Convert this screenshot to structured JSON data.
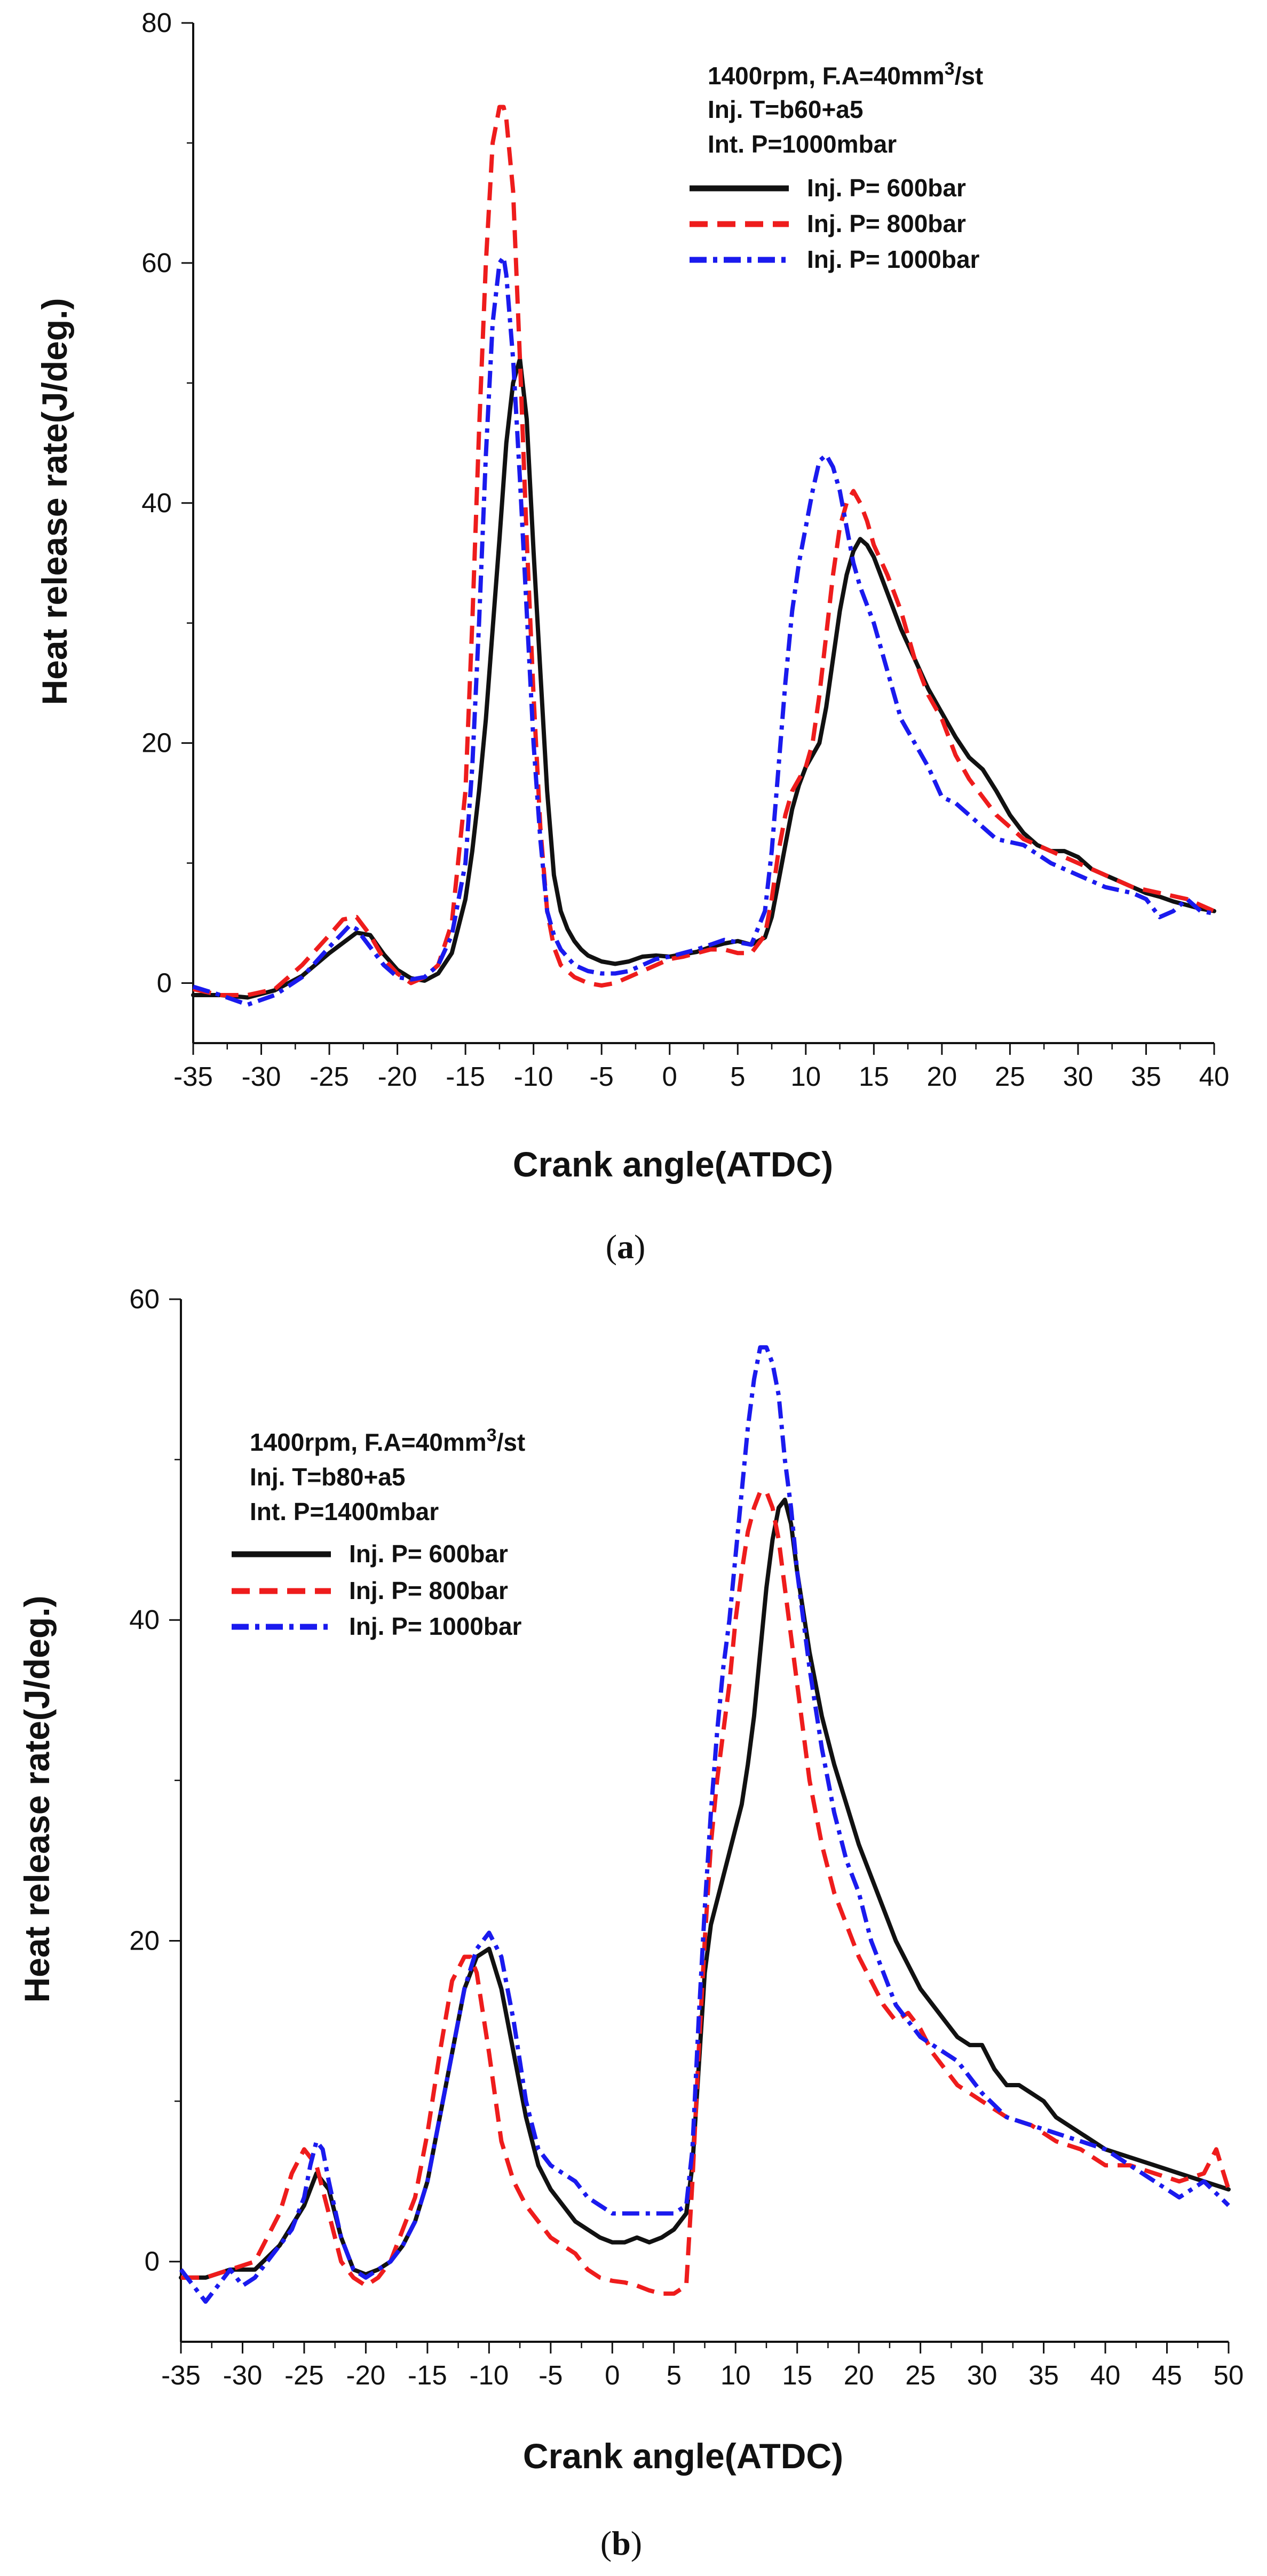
{
  "chart_data": [
    {
      "type": "line",
      "panel_label": "a",
      "xlabel": "Crank angle(ATDC)",
      "ylabel": "Heat release rate(J/deg.)",
      "xlim": [
        -35,
        40
      ],
      "ylim": [
        -5,
        80
      ],
      "xticks": [
        -35,
        -30,
        -25,
        -20,
        -15,
        -10,
        -5,
        0,
        5,
        10,
        15,
        20,
        25,
        30,
        35,
        40
      ],
      "yticks": [
        0,
        20,
        40,
        60,
        80
      ],
      "annotations": {
        "line1": "1400rpm, F.A=40mm",
        "line1_sup": "3",
        "line1_suffix": "/st",
        "line2": "Inj. T=b60+a5",
        "line3": "Int. P=1000mbar"
      },
      "legend_position": "top-right",
      "series": [
        {
          "name": "Inj. P= 600bar",
          "color": "#111111",
          "style": "solid",
          "x": [
            -35,
            -33,
            -31,
            -29,
            -27,
            -25,
            -23,
            -22,
            -21,
            -20,
            -19,
            -18,
            -17,
            -16,
            -15,
            -14.5,
            -14,
            -13.5,
            -13,
            -12.5,
            -12,
            -11.5,
            -11,
            -10.5,
            -10,
            -9.5,
            -9,
            -8.5,
            -8,
            -7.5,
            -7,
            -6.5,
            -6,
            -5,
            -4,
            -3,
            -2,
            -1,
            0,
            1,
            2,
            3,
            4,
            5,
            6,
            7,
            7.5,
            8,
            8.5,
            9,
            9.5,
            10,
            10.5,
            11,
            11.5,
            12,
            12.5,
            13,
            13.5,
            14,
            14.5,
            15,
            15.5,
            16,
            17,
            18,
            19,
            20,
            21,
            22,
            23,
            24,
            25,
            26,
            27,
            28,
            29,
            30,
            31,
            32,
            33,
            34,
            35,
            36,
            37,
            38,
            39,
            40
          ],
          "y": [
            -1,
            -1,
            -1.2,
            -0.6,
            0.6,
            2.5,
            4.2,
            4,
            2.4,
            1.1,
            0.4,
            0.2,
            0.8,
            2.5,
            7,
            11,
            16,
            22,
            29.5,
            37,
            45,
            50,
            52,
            47,
            36,
            26,
            16,
            9,
            6,
            4.5,
            3.5,
            2.8,
            2.3,
            1.8,
            1.6,
            1.8,
            2.2,
            2.3,
            2.2,
            2.4,
            2.6,
            3,
            3.3,
            3.5,
            3.2,
            3.8,
            5.5,
            8.5,
            11.5,
            14.5,
            16.5,
            18,
            19,
            20,
            23,
            27,
            31,
            34,
            36,
            37,
            36.5,
            35.5,
            34,
            32.5,
            29.5,
            27,
            24.5,
            22.5,
            20.5,
            18.8,
            17.8,
            16,
            14,
            12.5,
            11.5,
            11,
            11,
            10.5,
            9.5,
            9,
            8.5,
            8,
            7.5,
            7.2,
            6.8,
            6.5,
            6.2,
            6
          ]
        },
        {
          "name": "Inj. P= 800bar",
          "color": "#ee1c1c",
          "style": "dash",
          "x": [
            -35,
            -33,
            -31,
            -29,
            -27,
            -25,
            -24,
            -23,
            -22,
            -21,
            -20,
            -19,
            -18,
            -17,
            -16,
            -15,
            -14.5,
            -14,
            -13.5,
            -13,
            -12.5,
            -12.2,
            -12,
            -11.5,
            -11,
            -10.5,
            -10,
            -9.5,
            -9,
            -8.5,
            -8,
            -7,
            -6,
            -5,
            -4,
            -3,
            -2,
            -1,
            0,
            1,
            2,
            3,
            4,
            5,
            6,
            7,
            7.5,
            8,
            8.5,
            9,
            9.5,
            10,
            10.5,
            11,
            11.5,
            12,
            12.5,
            13,
            13.5,
            14,
            14.5,
            15,
            16,
            17,
            18,
            19,
            20,
            21,
            22,
            23,
            24,
            25,
            26,
            28,
            30,
            32,
            34,
            36,
            38,
            40
          ],
          "y": [
            -0.5,
            -1,
            -1,
            -0.5,
            1.5,
            4,
            5.3,
            5.5,
            4,
            2,
            0.8,
            0,
            0.5,
            1.5,
            5,
            16,
            30,
            46,
            60,
            70,
            73,
            73,
            72,
            66,
            52,
            37,
            24,
            13,
            6,
            3,
            1.5,
            0.5,
            0,
            -0.2,
            0,
            0.5,
            1,
            1.5,
            2,
            2.2,
            2.5,
            2.8,
            2.8,
            2.5,
            2.5,
            4,
            7,
            11,
            14,
            16,
            17,
            18,
            20,
            24,
            29,
            34,
            38,
            40,
            41,
            40,
            38.5,
            36.5,
            34,
            31,
            27,
            24,
            22,
            19,
            17,
            15.5,
            14,
            13,
            12,
            11,
            10,
            9,
            8,
            7.5,
            7,
            6
          ]
        },
        {
          "name": "Inj. P= 1000bar",
          "color": "#1a1aee",
          "style": "dashdot",
          "x": [
            -35,
            -33,
            -31,
            -29,
            -27,
            -25,
            -23.5,
            -23,
            -22,
            -21,
            -20,
            -19,
            -18,
            -17,
            -16,
            -15,
            -14.5,
            -14,
            -13.5,
            -13,
            -12.5,
            -12.2,
            -12,
            -11.5,
            -11,
            -10.5,
            -10,
            -9.5,
            -9,
            -8.5,
            -8,
            -7,
            -6,
            -5,
            -4,
            -3,
            -2,
            -1,
            0,
            1,
            2,
            3,
            4,
            5,
            6,
            7,
            7.5,
            8,
            8.5,
            9,
            9.5,
            10,
            10.5,
            11,
            11.5,
            12,
            12.5,
            13,
            13.5,
            14,
            15,
            16,
            17,
            18,
            19,
            20,
            21,
            22,
            23,
            24,
            26,
            28,
            30,
            32,
            34,
            35,
            36,
            37,
            38,
            39,
            40
          ],
          "y": [
            -0.3,
            -1,
            -1.8,
            -1,
            0.5,
            3,
            4.8,
            4.5,
            3,
            1.5,
            0.5,
            0.3,
            0.5,
            1.5,
            4,
            10,
            18,
            30,
            44,
            55,
            60,
            60.5,
            59,
            52,
            42,
            31,
            20,
            12,
            6,
            4,
            2.8,
            1.5,
            1,
            0.8,
            0.8,
            1,
            1.5,
            2,
            2.2,
            2.5,
            2.8,
            3.2,
            3.6,
            3.4,
            3.2,
            6,
            11,
            18,
            25,
            31,
            35,
            38,
            41,
            43.5,
            44,
            43,
            41,
            38,
            35,
            33,
            30,
            26,
            22,
            20,
            18,
            15.5,
            15,
            14,
            13,
            12,
            11.5,
            10,
            9,
            8,
            7.5,
            7,
            5.5,
            6,
            7,
            6,
            5.8
          ]
        }
      ]
    },
    {
      "type": "line",
      "panel_label": "b",
      "xlabel": "Crank angle(ATDC)",
      "ylabel": "Heat release rate(J/deg.)",
      "xlim": [
        -35,
        50
      ],
      "ylim": [
        -5,
        60
      ],
      "xticks": [
        -35,
        -30,
        -25,
        -20,
        -15,
        -10,
        -5,
        0,
        5,
        10,
        15,
        20,
        25,
        30,
        35,
        40,
        45,
        50
      ],
      "yticks": [
        0,
        20,
        40,
        60
      ],
      "annotations": {
        "line1": "1400rpm, F.A=40mm",
        "line1_sup": "3",
        "line1_suffix": "/st",
        "line2": "Inj. T=b80+a5",
        "line3": "Int. P=1400mbar"
      },
      "legend_position": "top-left",
      "series": [
        {
          "name": "Inj. P= 600bar",
          "color": "#111111",
          "style": "solid",
          "x": [
            -35,
            -33,
            -31,
            -29,
            -27,
            -25,
            -24,
            -23,
            -22,
            -21,
            -20,
            -19,
            -18,
            -17,
            -16,
            -15,
            -14,
            -13,
            -12,
            -11,
            -10,
            -9,
            -8,
            -7,
            -6,
            -5,
            -4,
            -3,
            -2,
            -1,
            0,
            1,
            2,
            3,
            4,
            5,
            6,
            6.5,
            7,
            7.5,
            8,
            8.5,
            9,
            9.5,
            10,
            10.5,
            11,
            11.5,
            12,
            12.5,
            13,
            13.5,
            14,
            14.5,
            15,
            16,
            17,
            18,
            19,
            20,
            21,
            22,
            23,
            24,
            25,
            26,
            27,
            28,
            29,
            30,
            31,
            32,
            33,
            34,
            35,
            36,
            37,
            38,
            40,
            42,
            44,
            46,
            48,
            50
          ],
          "y": [
            -1,
            -1,
            -0.5,
            -0.5,
            1,
            3.5,
            5.5,
            4.5,
            1.5,
            -0.5,
            -0.8,
            -0.5,
            0,
            1,
            2.5,
            5,
            9,
            13,
            17,
            19,
            19.5,
            17,
            13,
            9,
            6,
            4.5,
            3.5,
            2.5,
            2,
            1.5,
            1.2,
            1.2,
            1.5,
            1.2,
            1.5,
            2,
            3,
            6,
            12,
            18,
            21,
            22.5,
            24,
            25.5,
            27,
            28.5,
            31,
            34,
            38,
            42,
            45,
            47,
            47.5,
            46,
            43,
            38,
            34,
            31,
            28.5,
            26,
            24,
            22,
            20,
            18.5,
            17,
            16,
            15,
            14,
            13.5,
            13.5,
            12,
            11,
            11,
            10.5,
            10,
            9,
            8.5,
            8,
            7,
            6.5,
            6,
            5.5,
            5,
            4.5
          ]
        },
        {
          "name": "Inj. P= 800bar",
          "color": "#ee1c1c",
          "style": "dash",
          "x": [
            -35,
            -33,
            -31,
            -29,
            -27,
            -26,
            -25,
            -24,
            -23,
            -22,
            -21,
            -20,
            -19,
            -18,
            -17,
            -16,
            -15,
            -14,
            -13,
            -12,
            -11.5,
            -11,
            -10,
            -9,
            -8,
            -7,
            -6,
            -5,
            -4,
            -3,
            -2,
            -1,
            0,
            1,
            2,
            3,
            4,
            5,
            6,
            6.5,
            7,
            7.5,
            8,
            8.5,
            9,
            9.5,
            10,
            10.5,
            11,
            11.5,
            12,
            12.5,
            13,
            13.5,
            14,
            15,
            16,
            17,
            18,
            19,
            20,
            21,
            22,
            23,
            24,
            25,
            26,
            28,
            30,
            32,
            34,
            36,
            38,
            40,
            42,
            44,
            46,
            48,
            49,
            50
          ],
          "y": [
            -1,
            -1,
            -0.5,
            0,
            3,
            5.5,
            7,
            6,
            3,
            0,
            -1,
            -1.5,
            -1,
            0,
            2,
            4,
            8,
            13,
            17.5,
            19,
            19,
            18,
            13,
            7.5,
            5,
            3.5,
            2.5,
            1.5,
            1,
            0.5,
            -0.5,
            -1,
            -1.2,
            -1.3,
            -1.5,
            -1.8,
            -2,
            -2,
            -1.5,
            5,
            13,
            20,
            26,
            30,
            33,
            36,
            40,
            43,
            45.5,
            47,
            48,
            48,
            47,
            45,
            42,
            36,
            30,
            26,
            23,
            21,
            19,
            17.5,
            16,
            15,
            15.5,
            14.5,
            13,
            11,
            10,
            9,
            8.5,
            7.5,
            7,
            6,
            6,
            5.5,
            5,
            5.5,
            7,
            4.5
          ]
        },
        {
          "name": "Inj. P= 1000bar",
          "color": "#1a1aee",
          "style": "dashdot",
          "x": [
            -35,
            -34,
            -33,
            -32,
            -31,
            -30,
            -29,
            -28,
            -27,
            -26,
            -25,
            -24.5,
            -24,
            -23.5,
            -23,
            -22,
            -21,
            -20,
            -19,
            -18,
            -17,
            -16,
            -15,
            -14,
            -13,
            -12,
            -11,
            -10,
            -9,
            -8,
            -7,
            -6,
            -5,
            -4,
            -3,
            -2,
            -1,
            0,
            1,
            2,
            3,
            4,
            5,
            6,
            6.5,
            7,
            7.5,
            8,
            8.5,
            9,
            9.5,
            10,
            10.5,
            11,
            11.5,
            12,
            12.5,
            13,
            13.5,
            14,
            14.5,
            15,
            16,
            17,
            18,
            19,
            20,
            21,
            22,
            23,
            24,
            25,
            26,
            28,
            30,
            32,
            34,
            36,
            38,
            40,
            42,
            44,
            46,
            48,
            50
          ],
          "y": [
            -0.5,
            -1.5,
            -2.5,
            -1.5,
            -0.5,
            -1.5,
            -1,
            0,
            1,
            2,
            4,
            6,
            7.5,
            7,
            5,
            1.5,
            -0.5,
            -1,
            -0.5,
            0,
            1,
            2.5,
            5,
            9,
            13,
            17,
            19.5,
            20.5,
            19,
            15,
            10,
            7,
            6,
            5.5,
            5,
            4,
            3.5,
            3,
            3,
            3,
            3,
            3,
            3,
            3.5,
            7,
            15,
            22,
            28,
            33,
            37,
            40,
            44,
            48,
            52,
            55,
            57,
            57,
            56,
            54,
            50,
            47,
            43,
            37,
            32,
            28,
            25,
            23,
            20,
            18,
            16,
            15,
            14,
            13.5,
            12.5,
            10.5,
            9,
            8.5,
            8,
            7.5,
            7,
            6,
            5,
            4,
            5,
            3.5
          ]
        }
      ]
    }
  ]
}
